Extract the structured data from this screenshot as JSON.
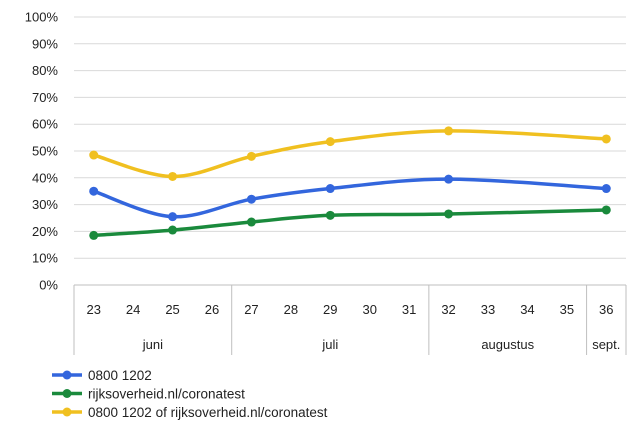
{
  "chart_data": {
    "type": "line",
    "title": "",
    "xlabel": "",
    "ylabel": "",
    "ylim": [
      0,
      100
    ],
    "y_ticks": [
      "0%",
      "10%",
      "20%",
      "30%",
      "40%",
      "50%",
      "60%",
      "70%",
      "80%",
      "90%",
      "100%"
    ],
    "x_ticks": [
      "23",
      "24",
      "25",
      "26",
      "27",
      "28",
      "29",
      "30",
      "31",
      "32",
      "33",
      "34",
      "35",
      "36"
    ],
    "months": [
      {
        "label": "juni",
        "weeks": [
          "23",
          "24",
          "25",
          "26"
        ]
      },
      {
        "label": "juli",
        "weeks": [
          "27",
          "28",
          "29",
          "30",
          "31"
        ]
      },
      {
        "label": "augustus",
        "weeks": [
          "32",
          "33",
          "34",
          "35"
        ]
      },
      {
        "label": "sept.",
        "weeks": [
          "36"
        ]
      }
    ],
    "grid": true,
    "legend_position": "bottom-left",
    "series": [
      {
        "name": "0800 1202",
        "color": "#3366dd",
        "points": [
          {
            "x": "23",
            "y": 35
          },
          {
            "x": "25",
            "y": 25.5
          },
          {
            "x": "27",
            "y": 32
          },
          {
            "x": "29",
            "y": 36
          },
          {
            "x": "32",
            "y": 39.5
          },
          {
            "x": "36",
            "y": 36
          }
        ]
      },
      {
        "name": "rijksoverheid.nl/coronatest",
        "color": "#1a8a3c",
        "points": [
          {
            "x": "23",
            "y": 18.5
          },
          {
            "x": "25",
            "y": 20.5
          },
          {
            "x": "27",
            "y": 23.5
          },
          {
            "x": "29",
            "y": 26
          },
          {
            "x": "32",
            "y": 26.5
          },
          {
            "x": "36",
            "y": 28
          }
        ]
      },
      {
        "name": "0800 1202 of rijksoverheid.nl/coronatest",
        "color": "#f0c020",
        "points": [
          {
            "x": "23",
            "y": 48.5
          },
          {
            "x": "25",
            "y": 40.5
          },
          {
            "x": "27",
            "y": 48
          },
          {
            "x": "29",
            "y": 53.5
          },
          {
            "x": "32",
            "y": 57.5
          },
          {
            "x": "36",
            "y": 54.5
          }
        ]
      }
    ]
  }
}
